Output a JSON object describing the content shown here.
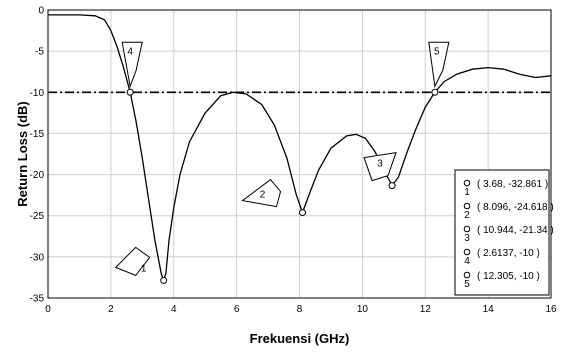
{
  "chart_data": {
    "type": "line",
    "xlabel": "Frekuensi (GHz)",
    "ylabel": "Return Loss (dB)",
    "xlim": [
      0,
      16
    ],
    "ylim": [
      -35,
      0
    ],
    "xticks": [
      0,
      2,
      4,
      6,
      8,
      10,
      12,
      14,
      16
    ],
    "yticks": [
      0,
      -5,
      -10,
      -15,
      -20,
      -25,
      -30,
      -35
    ],
    "grid": true,
    "reference_line": {
      "y": -10,
      "style": "dash-dot"
    },
    "series": [
      {
        "points": [
          [
            0,
            -0.6
          ],
          [
            1,
            -0.6
          ],
          [
            1.5,
            -0.7
          ],
          [
            1.8,
            -1.2
          ],
          [
            2.0,
            -2.5
          ],
          [
            2.2,
            -4.5
          ],
          [
            2.4,
            -7.0
          ],
          [
            2.6137,
            -10
          ],
          [
            2.8,
            -13.5
          ],
          [
            3.0,
            -18
          ],
          [
            3.2,
            -23
          ],
          [
            3.4,
            -28
          ],
          [
            3.6,
            -32
          ],
          [
            3.68,
            -32.861
          ],
          [
            3.75,
            -32
          ],
          [
            3.85,
            -28
          ],
          [
            4.0,
            -24
          ],
          [
            4.2,
            -20
          ],
          [
            4.5,
            -16
          ],
          [
            5.0,
            -12.5
          ],
          [
            5.5,
            -10.4
          ],
          [
            5.9,
            -10.0
          ],
          [
            6.3,
            -10.2
          ],
          [
            6.8,
            -11.5
          ],
          [
            7.2,
            -14
          ],
          [
            7.6,
            -18
          ],
          [
            7.9,
            -22.5
          ],
          [
            8.096,
            -24.618
          ],
          [
            8.3,
            -22.5
          ],
          [
            8.6,
            -19.5
          ],
          [
            9.0,
            -16.8
          ],
          [
            9.5,
            -15.3
          ],
          [
            9.8,
            -15.1
          ],
          [
            10.1,
            -15.6
          ],
          [
            10.4,
            -17.2
          ],
          [
            10.7,
            -19.6
          ],
          [
            10.944,
            -21.34
          ],
          [
            11.15,
            -20.3
          ],
          [
            11.4,
            -17.5
          ],
          [
            11.7,
            -14.5
          ],
          [
            12.0,
            -11.8
          ],
          [
            12.305,
            -10
          ],
          [
            12.6,
            -8.7
          ],
          [
            13.0,
            -7.8
          ],
          [
            13.5,
            -7.2
          ],
          [
            14.0,
            -7.0
          ],
          [
            14.5,
            -7.2
          ],
          [
            15.0,
            -7.8
          ],
          [
            15.5,
            -8.2
          ],
          [
            16.0,
            -8.0
          ]
        ]
      }
    ],
    "markers": [
      {
        "id": "1",
        "x": 3.68,
        "y": -32.861,
        "label": "( 3.68, -32.861 )"
      },
      {
        "id": "2",
        "x": 8.096,
        "y": -24.618,
        "label": "( 8.096, -24.618 )"
      },
      {
        "id": "3",
        "x": 10.944,
        "y": -21.34,
        "label": "( 10.944, -21.34 )"
      },
      {
        "id": "4",
        "x": 2.6137,
        "y": -10,
        "label": "( 2.6137, -10 )"
      },
      {
        "id": "5",
        "x": 12.305,
        "y": -10,
        "label": "( 12.305, -10 )"
      }
    ],
    "legend_position": "bottom-right"
  }
}
